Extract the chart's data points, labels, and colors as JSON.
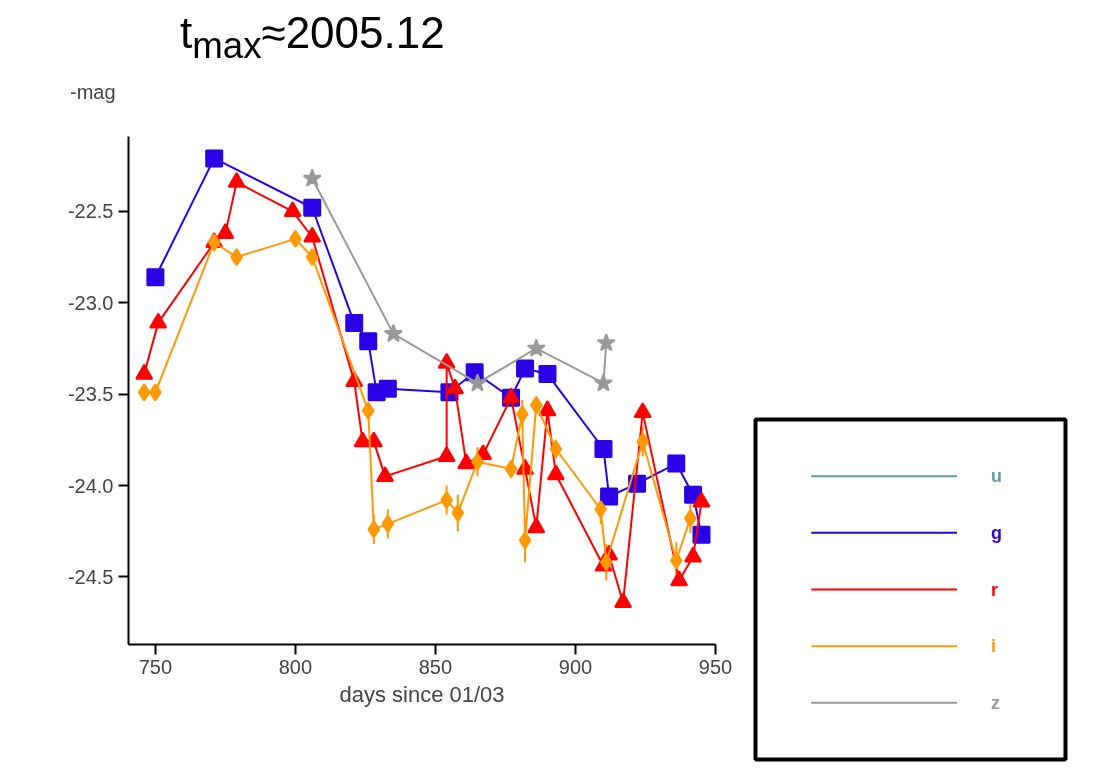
{
  "chart_data": {
    "type": "line",
    "title": "t$_{max}$≈2005.12",
    "xlabel": "days since 01/03",
    "ylabel": "-mag",
    "xlim": [
      740.4,
      950
    ],
    "ylim": [
      -24.87,
      -22.09
    ],
    "xticks": [
      750,
      800,
      850,
      900,
      950
    ],
    "yticks": [
      {
        "value": -22.5,
        "label": "-22.5"
      },
      {
        "value": -23,
        "label": "-23.0"
      },
      {
        "value": -23.5,
        "label": "-23.5"
      },
      {
        "value": -24,
        "label": "-24.0"
      },
      {
        "value": -24.5,
        "label": "-24.5"
      }
    ],
    "grid": false,
    "legend": "right",
    "series": [
      {
        "name": "u",
        "color": "#5f9ea0"
      },
      {
        "name": "g",
        "color": "#2b00e6",
        "marker": "square",
        "x": [
          750,
          771,
          806,
          821,
          826,
          829,
          833,
          855,
          864,
          877,
          882,
          890,
          910,
          912,
          922,
          936,
          942,
          945
        ],
        "values": [
          -22.86,
          -22.21,
          -22.48,
          -23.11,
          -23.21,
          -23.49,
          -23.47,
          -23.49,
          -23.38,
          -23.52,
          -23.36,
          -23.39,
          -23.8,
          -24.06,
          -23.99,
          -23.88,
          -24.05,
          -24.27
        ]
      },
      {
        "name": "r",
        "color": "#ff0000",
        "marker": "triangle",
        "x": [
          746,
          751,
          771,
          775,
          779,
          799,
          806,
          821,
          824,
          828,
          832,
          854,
          854,
          857,
          861,
          867,
          877,
          882,
          886,
          890,
          893,
          910,
          912,
          917,
          924,
          937,
          942,
          945
        ],
        "values": [
          -23.39,
          -23.11,
          -22.67,
          -22.62,
          -22.34,
          -22.5,
          -22.64,
          -23.43,
          -23.76,
          -23.76,
          -23.95,
          -23.84,
          -23.33,
          -23.47,
          -23.88,
          -23.83,
          -23.52,
          -23.91,
          -24.23,
          -23.59,
          -23.94,
          -24.44,
          -24.38,
          -24.64,
          -23.6,
          -24.52,
          -24.39,
          -24.09
        ]
      },
      {
        "name": "i",
        "color": "#ff9900",
        "marker": "diamond",
        "x": [
          746,
          750,
          771,
          779,
          800,
          806,
          826,
          828,
          833,
          854,
          858,
          865,
          877,
          881,
          882,
          886,
          893,
          909,
          911,
          924,
          936,
          941
        ],
        "values": [
          -23.49,
          -23.49,
          -22.67,
          -22.75,
          -22.65,
          -22.75,
          -23.59,
          -24.24,
          -24.21,
          -24.08,
          -24.15,
          -23.87,
          -23.91,
          -23.61,
          -24.3,
          -23.56,
          -23.8,
          -24.13,
          -24.42,
          -23.76,
          -24.41,
          -24.18
        ],
        "errors": [
          null,
          null,
          null,
          null,
          null,
          null,
          null,
          0.08,
          0.08,
          0.08,
          0.1,
          0.08,
          0.05,
          0.08,
          0.12,
          0.05,
          0.05,
          0.08,
          0.1,
          0.08,
          0.1,
          0.08
        ]
      },
      {
        "name": "z",
        "color": "#999999",
        "marker": "star",
        "x": [
          806,
          835,
          865,
          886,
          910,
          911
        ],
        "values": [
          -22.32,
          -23.17,
          -23.44,
          -23.25,
          -23.44,
          -23.22
        ]
      }
    ]
  }
}
